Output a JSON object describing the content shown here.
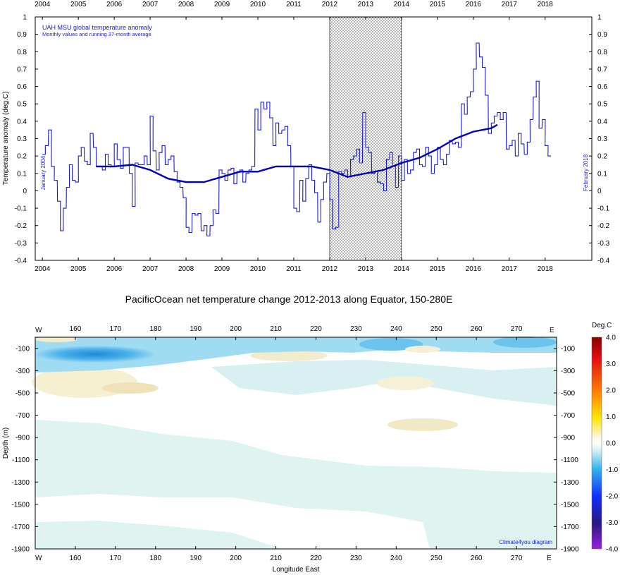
{
  "chart_data": [
    {
      "type": "line",
      "title": "UAH MSU global temperature anomaly",
      "subtitle": "Monthly values and running 37-month average",
      "ylabel": "Temperature anomaly (deg.C)",
      "xlim": [
        2003.8,
        2019.3
      ],
      "ylim": [
        -0.4,
        1.0
      ],
      "yticks": [
        -0.4,
        -0.3,
        -0.2,
        -0.1,
        0,
        0.1,
        0.2,
        0.3,
        0.4,
        0.5,
        0.6,
        0.7,
        0.8,
        0.9,
        1
      ],
      "xticks": [
        2004,
        2005,
        2006,
        2007,
        2008,
        2009,
        2010,
        2011,
        2012,
        2013,
        2014,
        2015,
        2016,
        2017,
        2018
      ],
      "shaded_period": [
        2012,
        2014
      ],
      "annotations": [
        "January 2004",
        "February 2018"
      ],
      "series": [
        {
          "name": "Monthly values",
          "x": [
            2004.0,
            2004.08,
            2004.17,
            2004.25,
            2004.33,
            2004.42,
            2004.5,
            2004.58,
            2004.67,
            2004.75,
            2004.83,
            2004.92,
            2005.0,
            2005.08,
            2005.17,
            2005.25,
            2005.33,
            2005.42,
            2005.5,
            2005.58,
            2005.67,
            2005.75,
            2005.83,
            2005.92,
            2006.0,
            2006.08,
            2006.17,
            2006.25,
            2006.33,
            2006.42,
            2006.5,
            2006.58,
            2006.67,
            2006.75,
            2006.83,
            2006.92,
            2007.0,
            2007.08,
            2007.17,
            2007.25,
            2007.33,
            2007.42,
            2007.5,
            2007.58,
            2007.67,
            2007.75,
            2007.83,
            2007.92,
            2008.0,
            2008.08,
            2008.17,
            2008.25,
            2008.33,
            2008.42,
            2008.5,
            2008.58,
            2008.67,
            2008.75,
            2008.83,
            2008.92,
            2009.0,
            2009.08,
            2009.17,
            2009.25,
            2009.33,
            2009.42,
            2009.5,
            2009.58,
            2009.67,
            2009.75,
            2009.83,
            2009.92,
            2010.0,
            2010.08,
            2010.17,
            2010.25,
            2010.33,
            2010.42,
            2010.5,
            2010.58,
            2010.67,
            2010.75,
            2010.83,
            2010.92,
            2011.0,
            2011.08,
            2011.17,
            2011.25,
            2011.33,
            2011.42,
            2011.5,
            2011.58,
            2011.67,
            2011.75,
            2011.83,
            2011.92,
            2012.0,
            2012.08,
            2012.17,
            2012.25,
            2012.33,
            2012.42,
            2012.5,
            2012.58,
            2012.67,
            2012.75,
            2012.83,
            2012.92,
            2013.0,
            2013.08,
            2013.17,
            2013.25,
            2013.33,
            2013.42,
            2013.5,
            2013.58,
            2013.67,
            2013.75,
            2013.83,
            2013.92,
            2014.0,
            2014.08,
            2014.17,
            2014.25,
            2014.33,
            2014.42,
            2014.5,
            2014.58,
            2014.67,
            2014.75,
            2014.83,
            2014.92,
            2015.0,
            2015.08,
            2015.17,
            2015.25,
            2015.33,
            2015.42,
            2015.5,
            2015.58,
            2015.67,
            2015.75,
            2015.83,
            2015.92,
            2016.0,
            2016.08,
            2016.17,
            2016.25,
            2016.33,
            2016.42,
            2016.5,
            2016.58,
            2016.67,
            2016.75,
            2016.83,
            2016.92,
            2017.0,
            2017.08,
            2017.17,
            2017.25,
            2017.33,
            2017.42,
            2017.5,
            2017.58,
            2017.67,
            2017.75,
            2017.83,
            2017.92,
            2018.0,
            2018.08
          ],
          "y": [
            0.21,
            0.26,
            0.35,
            0.14,
            0.06,
            -0.06,
            -0.23,
            -0.1,
            0.02,
            0.15,
            0.06,
            0.05,
            0.2,
            0.25,
            0.17,
            0.15,
            0.33,
            0.25,
            0.14,
            0.14,
            0.12,
            0.21,
            0.15,
            0.14,
            0.27,
            0.18,
            0.13,
            0.25,
            0.25,
            0.1,
            -0.09,
            0.16,
            0.15,
            0.15,
            0.2,
            0.15,
            0.43,
            0.23,
            0.12,
            0.22,
            0.26,
            0.15,
            0.18,
            0.2,
            0.11,
            0.05,
            0.02,
            -0.04,
            -0.21,
            -0.24,
            -0.13,
            -0.14,
            -0.13,
            -0.23,
            -0.2,
            -0.26,
            -0.2,
            -0.11,
            -0.13,
            0.12,
            0.1,
            0.06,
            0.12,
            0.13,
            0.04,
            0.11,
            0.12,
            0.05,
            0.1,
            0.12,
            0.14,
            0.47,
            0.35,
            0.51,
            0.47,
            0.51,
            0.42,
            0.26,
            0.39,
            0.33,
            0.35,
            0.37,
            0.26,
            0.14,
            -0.1,
            -0.12,
            0.06,
            -0.06,
            0.07,
            0.15,
            0.06,
            -0.01,
            -0.18,
            -0.05,
            0.05,
            0.1,
            -0.05,
            -0.22,
            -0.21,
            0.11,
            0.1,
            0.12,
            0.08,
            0.18,
            0.2,
            0.24,
            0.16,
            0.45,
            0.25,
            0.22,
            0.1,
            0.11,
            0.05,
            0.04,
            0.0,
            0.18,
            0.22,
            0.14,
            0.02,
            0.2,
            0.06,
            0.18,
            0.1,
            0.12,
            0.22,
            0.24,
            0.15,
            0.14,
            0.25,
            0.2,
            0.1,
            0.15,
            0.25,
            0.18,
            0.15,
            0.21,
            0.29,
            0.27,
            0.28,
            0.25,
            0.5,
            0.44,
            0.54,
            0.57,
            0.7,
            0.85,
            0.77,
            0.71,
            0.55,
            0.33,
            0.39,
            0.43,
            0.45,
            0.41,
            0.45,
            0.24,
            0.26,
            0.29,
            0.2,
            0.33,
            0.27,
            0.21,
            0.28,
            0.41,
            0.54,
            0.63,
            0.36,
            0.41,
            0.26,
            0.2
          ]
        },
        {
          "name": "Running 37-month average",
          "x": [
            2005.5,
            2006.0,
            2006.5,
            2007.0,
            2007.5,
            2008.0,
            2008.5,
            2009.0,
            2009.5,
            2010.0,
            2010.5,
            2011.0,
            2011.5,
            2012.0,
            2012.5,
            2013.0,
            2013.5,
            2014.0,
            2014.5,
            2015.0,
            2015.5,
            2016.0,
            2016.5,
            2016.67
          ],
          "y": [
            0.14,
            0.14,
            0.15,
            0.12,
            0.07,
            0.05,
            0.05,
            0.08,
            0.11,
            0.11,
            0.14,
            0.14,
            0.14,
            0.12,
            0.08,
            0.1,
            0.12,
            0.16,
            0.19,
            0.24,
            0.3,
            0.34,
            0.36,
            0.38
          ]
        }
      ]
    },
    {
      "type": "heatmap",
      "title": "PacificOcean net temperature change 2012-2013 along Equator, 150-280E",
      "xlabel": "Longitude East",
      "ylabel": "Depth (m)",
      "xlim": [
        150,
        280
      ],
      "ylim": [
        -1900,
        0
      ],
      "xticks": [
        160,
        170,
        180,
        190,
        200,
        210,
        220,
        230,
        240,
        250,
        260,
        270
      ],
      "yticks": [
        -100,
        -300,
        -500,
        -700,
        -900,
        -1100,
        -1300,
        -1500,
        -1700,
        -1900
      ],
      "side_labels": [
        "W",
        "E"
      ],
      "colorbar": {
        "title": "Deg.C",
        "range": [
          -4.0,
          4.0
        ],
        "ticks": [
          "4.0",
          "3.0",
          "2.0",
          "1.0",
          "0.0",
          "-1.0",
          "-2.0",
          "-3.0",
          "-4.0"
        ]
      },
      "credit": "Climate4you diagram"
    }
  ],
  "colors": {
    "series_line": "#1a1adb",
    "running_avg": "#0000b8",
    "cold": "#3aa8e6",
    "cool": "#bde6ee",
    "warm": "#f3eccc"
  }
}
